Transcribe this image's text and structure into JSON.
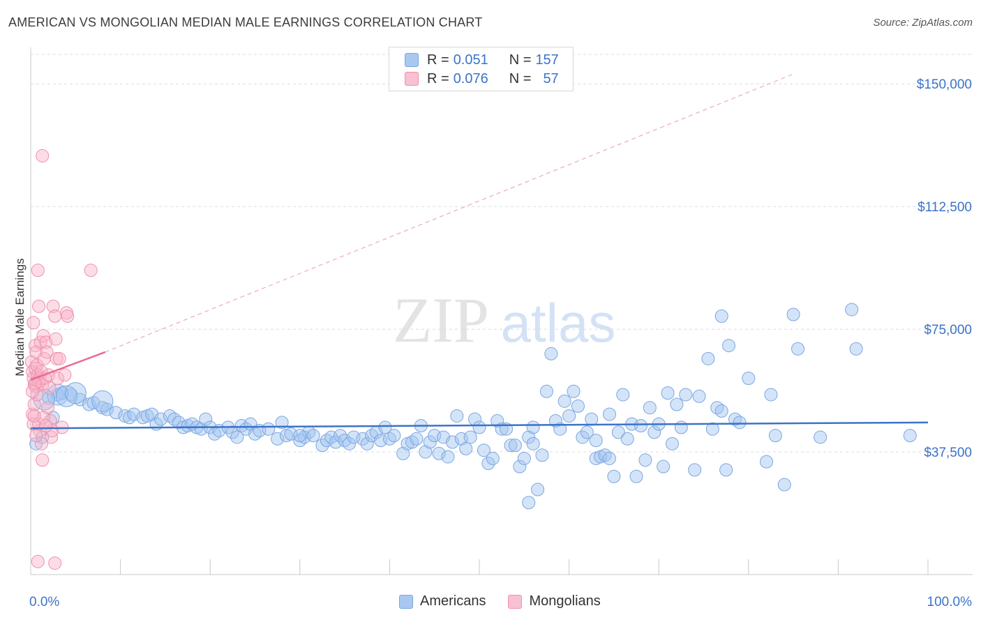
{
  "title": "AMERICAN VS MONGOLIAN MEDIAN MALE EARNINGS CORRELATION CHART",
  "source": "Source: ZipAtlas.com",
  "watermark": {
    "zip": "ZIP",
    "atlas": "atlas"
  },
  "legend": {
    "rows": [
      {
        "r_label": "R =",
        "r_value": "0.051",
        "n_label": "N =",
        "n_value": "157",
        "color": "#a8c8f0",
        "stroke": "#7aa6e0"
      },
      {
        "r_label": "R =",
        "r_value": "0.076",
        "n_label": "N =",
        "n_value": "57",
        "color": "#f8c0d0",
        "stroke": "#ee90ae"
      }
    ]
  },
  "bottom_legend": [
    {
      "label": "Americans",
      "color": "#a8c8f0",
      "stroke": "#7aa6e0"
    },
    {
      "label": "Mongolians",
      "color": "#f8c0d0",
      "stroke": "#ee90ae"
    }
  ],
  "chart_data": {
    "type": "scatter",
    "ylabel": "Median Male Earnings",
    "xlabel": "",
    "xlim": [
      0,
      100
    ],
    "ylim": [
      0,
      159000
    ],
    "x_tick_labels": [
      "0.0%",
      "100.0%"
    ],
    "y_ticks": [
      37500,
      75000,
      112500,
      150000
    ],
    "y_tick_labels": [
      "$37,500",
      "$75,000",
      "$112,500",
      "$150,000"
    ],
    "colors": {
      "americans": "#3b73c8",
      "mongolians": "#e86a92",
      "tick_text": "#3b73c8"
    },
    "series": [
      {
        "name": "Americans",
        "trend": {
          "x0": 0,
          "y0": 44700,
          "x1": 100,
          "y1": 46500
        },
        "points": [
          [
            0.6,
            40000
          ],
          [
            2.0,
            54000
          ],
          [
            3.0,
            55000
          ],
          [
            3.5,
            55500
          ],
          [
            4.5,
            55000
          ],
          [
            5.5,
            53500
          ],
          [
            6.5,
            52000
          ],
          [
            7.0,
            52500
          ],
          [
            8.0,
            51000
          ],
          [
            8.5,
            50500
          ],
          [
            9.5,
            49500
          ],
          [
            10.5,
            48500
          ],
          [
            11.0,
            48000
          ],
          [
            11.5,
            49000
          ],
          [
            12.5,
            48000
          ],
          [
            13.0,
            48500
          ],
          [
            13.5,
            49000
          ],
          [
            14.0,
            46000
          ],
          [
            14.5,
            47500
          ],
          [
            15.5,
            48500
          ],
          [
            16.0,
            47500
          ],
          [
            16.5,
            46500
          ],
          [
            17.0,
            45000
          ],
          [
            17.5,
            45500
          ],
          [
            18.0,
            46000
          ],
          [
            18.5,
            45000
          ],
          [
            19.0,
            44500
          ],
          [
            19.5,
            47500
          ],
          [
            20.0,
            45000
          ],
          [
            20.5,
            43000
          ],
          [
            21.0,
            44000
          ],
          [
            22.0,
            45000
          ],
          [
            22.5,
            43500
          ],
          [
            23.0,
            42000
          ],
          [
            23.5,
            45500
          ],
          [
            24.0,
            44500
          ],
          [
            24.5,
            46000
          ],
          [
            25.0,
            43000
          ],
          [
            25.5,
            44000
          ],
          [
            26.5,
            44500
          ],
          [
            27.5,
            41500
          ],
          [
            28.0,
            46500
          ],
          [
            28.5,
            42500
          ],
          [
            29.0,
            43000
          ],
          [
            30.0,
            41000
          ],
          [
            30.5,
            42000
          ],
          [
            31.0,
            43500
          ],
          [
            31.5,
            42500
          ],
          [
            32.5,
            39500
          ],
          [
            33.0,
            41000
          ],
          [
            33.5,
            42000
          ],
          [
            34.0,
            40500
          ],
          [
            34.5,
            42500
          ],
          [
            35.0,
            41000
          ],
          [
            35.5,
            40000
          ],
          [
            36.0,
            42000
          ],
          [
            37.0,
            41500
          ],
          [
            37.5,
            40000
          ],
          [
            38.0,
            42500
          ],
          [
            38.5,
            43500
          ],
          [
            39.0,
            41000
          ],
          [
            39.5,
            45000
          ],
          [
            40.0,
            41500
          ],
          [
            40.5,
            42500
          ],
          [
            41.5,
            37000
          ],
          [
            42.0,
            40000
          ],
          [
            42.5,
            40500
          ],
          [
            43.0,
            41500
          ],
          [
            43.5,
            45500
          ],
          [
            44.0,
            37500
          ],
          [
            44.5,
            40500
          ],
          [
            45.0,
            42500
          ],
          [
            45.5,
            37000
          ],
          [
            46.0,
            42000
          ],
          [
            46.5,
            36000
          ],
          [
            47.0,
            40500
          ],
          [
            47.5,
            48500
          ],
          [
            48.0,
            41500
          ],
          [
            48.5,
            38500
          ],
          [
            49.0,
            42000
          ],
          [
            49.5,
            47500
          ],
          [
            50.0,
            45000
          ],
          [
            50.5,
            38000
          ],
          [
            51.0,
            34000
          ],
          [
            51.5,
            35500
          ],
          [
            52.0,
            47000
          ],
          [
            52.5,
            44500
          ],
          [
            53.0,
            44500
          ],
          [
            53.5,
            39500
          ],
          [
            54.0,
            39500
          ],
          [
            54.5,
            33000
          ],
          [
            55.0,
            35500
          ],
          [
            55.5,
            42000
          ],
          [
            56.0,
            45000
          ],
          [
            56.5,
            26000
          ],
          [
            57.0,
            36500
          ],
          [
            57.5,
            56000
          ],
          [
            58.0,
            67500
          ],
          [
            58.5,
            47000
          ],
          [
            59.0,
            44500
          ],
          [
            59.5,
            53000
          ],
          [
            60.0,
            48500
          ],
          [
            60.5,
            56000
          ],
          [
            61.0,
            51500
          ],
          [
            61.5,
            42000
          ],
          [
            62.0,
            43500
          ],
          [
            62.5,
            47500
          ],
          [
            63.0,
            35500
          ],
          [
            63.5,
            36000
          ],
          [
            64.0,
            36500
          ],
          [
            64.5,
            49000
          ],
          [
            65.0,
            30000
          ],
          [
            65.5,
            43500
          ],
          [
            66.0,
            55000
          ],
          [
            66.5,
            41500
          ],
          [
            67.0,
            46000
          ],
          [
            67.5,
            30000
          ],
          [
            68.0,
            45500
          ],
          [
            68.5,
            35000
          ],
          [
            69.0,
            51000
          ],
          [
            69.5,
            43500
          ],
          [
            70.0,
            46000
          ],
          [
            70.5,
            33000
          ],
          [
            71.0,
            55500
          ],
          [
            71.5,
            40000
          ],
          [
            72.0,
            52000
          ],
          [
            72.5,
            45000
          ],
          [
            73.0,
            55000
          ],
          [
            74.0,
            32000
          ],
          [
            74.5,
            54500
          ],
          [
            75.5,
            66000
          ],
          [
            76.0,
            44500
          ],
          [
            76.5,
            51000
          ],
          [
            77.0,
            50000
          ],
          [
            77.5,
            32000
          ],
          [
            77.0,
            79000
          ],
          [
            77.8,
            70000
          ],
          [
            78.5,
            47500
          ],
          [
            79.0,
            46500
          ],
          [
            80.0,
            60000
          ],
          [
            82.0,
            34500
          ],
          [
            82.5,
            55000
          ],
          [
            83.0,
            42500
          ],
          [
            84.0,
            27500
          ],
          [
            85.0,
            79500
          ],
          [
            85.5,
            69000
          ],
          [
            88.0,
            42000
          ],
          [
            91.5,
            81000
          ],
          [
            92.0,
            69000
          ],
          [
            98.0,
            42500
          ],
          [
            1.3,
            42000
          ],
          [
            2.5,
            48000
          ],
          [
            30.0,
            42500
          ],
          [
            55.5,
            22000
          ],
          [
            56.0,
            40000
          ],
          [
            63.0,
            41000
          ],
          [
            64.5,
            35500
          ]
        ],
        "big_points": [
          [
            3.0,
            55000
          ],
          [
            4.0,
            54500
          ],
          [
            5.0,
            55500
          ],
          [
            8.0,
            53000
          ],
          [
            1.5,
            53500
          ]
        ]
      },
      {
        "name": "Mongolians",
        "trend": {
          "x0": 0,
          "y0": 59500,
          "x1": 8.3,
          "y1": 68000
        },
        "trend_dashed": {
          "x0": 8.3,
          "y0": 68000,
          "x1": 85,
          "y1": 153000
        },
        "points": [
          [
            0.1,
            65000
          ],
          [
            0.2,
            62000
          ],
          [
            0.3,
            60000
          ],
          [
            0.4,
            58000
          ],
          [
            0.5,
            63000
          ],
          [
            0.6,
            57500
          ],
          [
            0.7,
            64000
          ],
          [
            0.8,
            61000
          ],
          [
            0.3,
            77000
          ],
          [
            0.5,
            70000
          ],
          [
            0.6,
            68000
          ],
          [
            0.9,
            59000
          ],
          [
            1.0,
            60000
          ],
          [
            1.1,
            71000
          ],
          [
            1.2,
            62000
          ],
          [
            1.3,
            58000
          ],
          [
            1.4,
            73000
          ],
          [
            1.5,
            66000
          ],
          [
            1.6,
            60000
          ],
          [
            1.7,
            71000
          ],
          [
            1.8,
            68000
          ],
          [
            1.9,
            51000
          ],
          [
            2.0,
            61000
          ],
          [
            2.1,
            57000
          ],
          [
            2.2,
            47000
          ],
          [
            2.3,
            42000
          ],
          [
            2.4,
            44000
          ],
          [
            2.5,
            82000
          ],
          [
            2.7,
            79000
          ],
          [
            2.8,
            72000
          ],
          [
            2.9,
            66000
          ],
          [
            3.0,
            60000
          ],
          [
            0.8,
            93000
          ],
          [
            1.3,
            128000
          ],
          [
            0.9,
            82000
          ],
          [
            4.0,
            80000
          ],
          [
            4.1,
            79000
          ],
          [
            6.7,
            93000
          ],
          [
            3.5,
            45000
          ],
          [
            0.2,
            49000
          ],
          [
            0.4,
            52000
          ],
          [
            0.7,
            55000
          ],
          [
            1.0,
            44000
          ],
          [
            1.2,
            40000
          ],
          [
            1.3,
            35000
          ],
          [
            0.3,
            46000
          ],
          [
            0.6,
            42500
          ],
          [
            0.9,
            46000
          ],
          [
            1.4,
            48000
          ],
          [
            1.7,
            45500
          ],
          [
            3.8,
            61000
          ],
          [
            3.2,
            66000
          ],
          [
            0.8,
            4000
          ],
          [
            2.7,
            3500
          ],
          [
            0.5,
            58500
          ],
          [
            0.2,
            56000
          ],
          [
            0.4,
            48500
          ]
        ],
        "big_points": []
      }
    ]
  }
}
